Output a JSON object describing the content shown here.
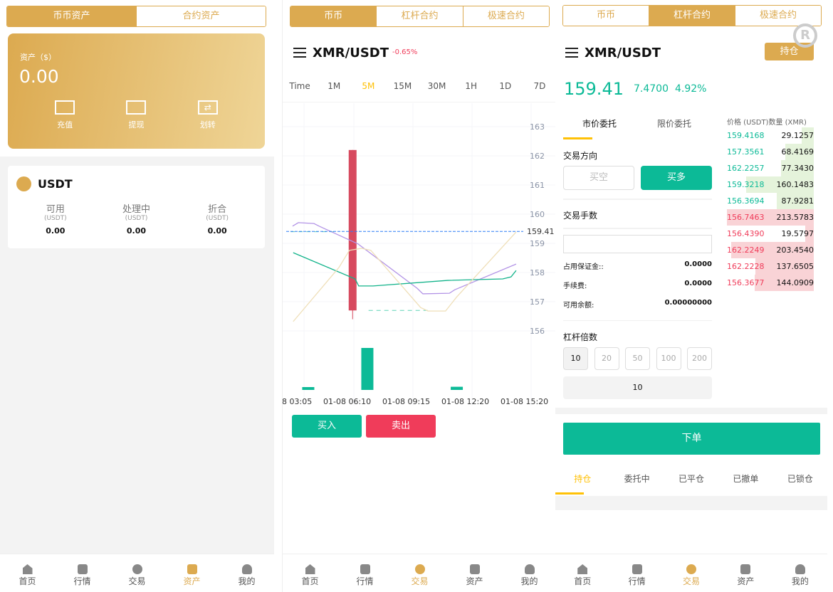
{
  "colors": {
    "gold": "#dcaa50",
    "green": "#0cba97",
    "red": "#f03c5a",
    "candle_red": "#d74a5f"
  },
  "panel1": {
    "tabs": [
      "币币资产",
      "合约资产"
    ],
    "asset_label": "资产（$）",
    "asset_value": "0.00",
    "actions": [
      {
        "label": "充值",
        "icon": "deposit-icon"
      },
      {
        "label": "提现",
        "icon": "withdraw-icon"
      },
      {
        "label": "划转",
        "icon": "transfer-icon"
      }
    ],
    "coin": {
      "name": "USDT",
      "cols": [
        {
          "label": "可用",
          "unit": "(USDT)",
          "value": "0.00"
        },
        {
          "label": "处理中",
          "unit": "(USDT)",
          "value": "0.00"
        },
        {
          "label": "折合",
          "unit": "(USDT)",
          "value": "0.00"
        }
      ]
    }
  },
  "panel2": {
    "tabs": [
      "币币",
      "杠杆合约",
      "极速合约"
    ],
    "pair": "XMR/USDT",
    "change": "-0.65%",
    "intervals": [
      "Time",
      "1M",
      "5M",
      "15M",
      "30M",
      "1H",
      "1D",
      "7D"
    ],
    "active_interval": "5M",
    "buy": "买入",
    "sell": "卖出"
  },
  "chart_data": {
    "type": "candlestick",
    "y_ticks": [
      163,
      162,
      161,
      160,
      159,
      158,
      157,
      156
    ],
    "ylim": [
      155.2,
      163.8
    ],
    "x_ticks": [
      "8 03:05",
      "01-08 06:10",
      "01-08 09:15",
      "01-08 12:20",
      "01-08 15:20"
    ],
    "last_price": "159.41",
    "candles": [
      {
        "time": "05:55",
        "open": 162.2,
        "high": 162.2,
        "low": 156.4,
        "close": 156.7
      }
    ],
    "volume": [
      {
        "time": "03:35",
        "value": 0.5
      },
      {
        "time": "06:40",
        "value": 8
      },
      {
        "time": "11:20",
        "value": 0.6
      }
    ],
    "ma_lines": [
      {
        "color": "#b394e6",
        "points": [
          [
            "02:47",
            159.59
          ],
          [
            "03:05",
            159.71
          ],
          [
            "03:54",
            159.68
          ],
          [
            "04:10",
            159.59
          ],
          [
            "06:12",
            158.98
          ],
          [
            "09:17",
            157.46
          ],
          [
            "09:35",
            157.27
          ],
          [
            "10:58",
            157.29
          ],
          [
            "11:15",
            157.41
          ],
          [
            "14:27",
            158.29
          ]
        ]
      },
      {
        "color": "#12b38a",
        "points": [
          [
            "02:49",
            158.68
          ],
          [
            "06:03",
            157.78
          ],
          [
            "06:14",
            157.54
          ],
          [
            "06:59",
            157.54
          ],
          [
            "10:53",
            157.73
          ],
          [
            "13:45",
            157.78
          ],
          [
            "14:11",
            157.85
          ],
          [
            "14:27",
            158.07
          ]
        ]
      },
      {
        "color": "#efdfb8",
        "points": [
          [
            "02:49",
            156.32
          ],
          [
            "05:12",
            158.17
          ],
          [
            "05:45",
            158.76
          ],
          [
            "06:23",
            158.83
          ],
          [
            "06:52",
            158.76
          ],
          [
            "09:28",
            156.8
          ],
          [
            "09:51",
            156.68
          ],
          [
            "10:46",
            156.68
          ],
          [
            "11:20",
            157.15
          ],
          [
            "14:27",
            159.39
          ]
        ]
      }
    ],
    "dashed_levels": [
      {
        "from": "02:41",
        "to": "05:05",
        "value": 159.4
      },
      {
        "from": "06:45",
        "to": "09:58",
        "value": 156.7
      }
    ]
  },
  "panel3": {
    "tabs": [
      "币币",
      "杠杆合约",
      "极速合约"
    ],
    "pair": "XMR/USDT",
    "position_btn": "持仓",
    "price": "159.41",
    "change_abs": "7.4700",
    "change_pct": "4.92%",
    "order_tabs": [
      "市价委托",
      "限价委托"
    ],
    "direction_label": "交易方向",
    "sell_short": "买空",
    "buy_long": "买多",
    "qty_label": "交易手数",
    "qty_value": "",
    "info": [
      {
        "label": "占用保证金::",
        "value": "0.0000"
      },
      {
        "label": "手续费:",
        "value": "0.0000"
      },
      {
        "label": "可用余额:",
        "value": "0.00000000"
      }
    ],
    "leverage_label": "杠杆倍数",
    "leverage_options": [
      "10",
      "20",
      "50",
      "100",
      "200"
    ],
    "leverage_value": "10",
    "submit": "下单",
    "book_header": {
      "price": "价格 (USDT)",
      "qty": "数量 (XMR)"
    },
    "asks": [
      [
        "159.4168",
        "29.1257",
        0.14
      ],
      [
        "157.3561",
        "68.4169",
        0.33
      ],
      [
        "162.2257",
        "77.3430",
        0.38
      ],
      [
        "159.3218",
        "160.1483",
        0.78
      ],
      [
        "156.3694",
        "87.9281",
        0.43
      ]
    ],
    "bids": [
      [
        "156.7463",
        "213.5783",
        1.0
      ],
      [
        "156.4390",
        "19.5797",
        0.1
      ],
      [
        "162.2249",
        "203.4540",
        0.95
      ],
      [
        "162.2228",
        "137.6505",
        0.67
      ],
      [
        "156.3677",
        "144.0909",
        0.68
      ]
    ],
    "bottom_tabs": [
      "持仓",
      "委托中",
      "已平仓",
      "已撤单",
      "已锁仓"
    ]
  },
  "nav": [
    "首页",
    "行情",
    "交易",
    "资产",
    "我的"
  ]
}
